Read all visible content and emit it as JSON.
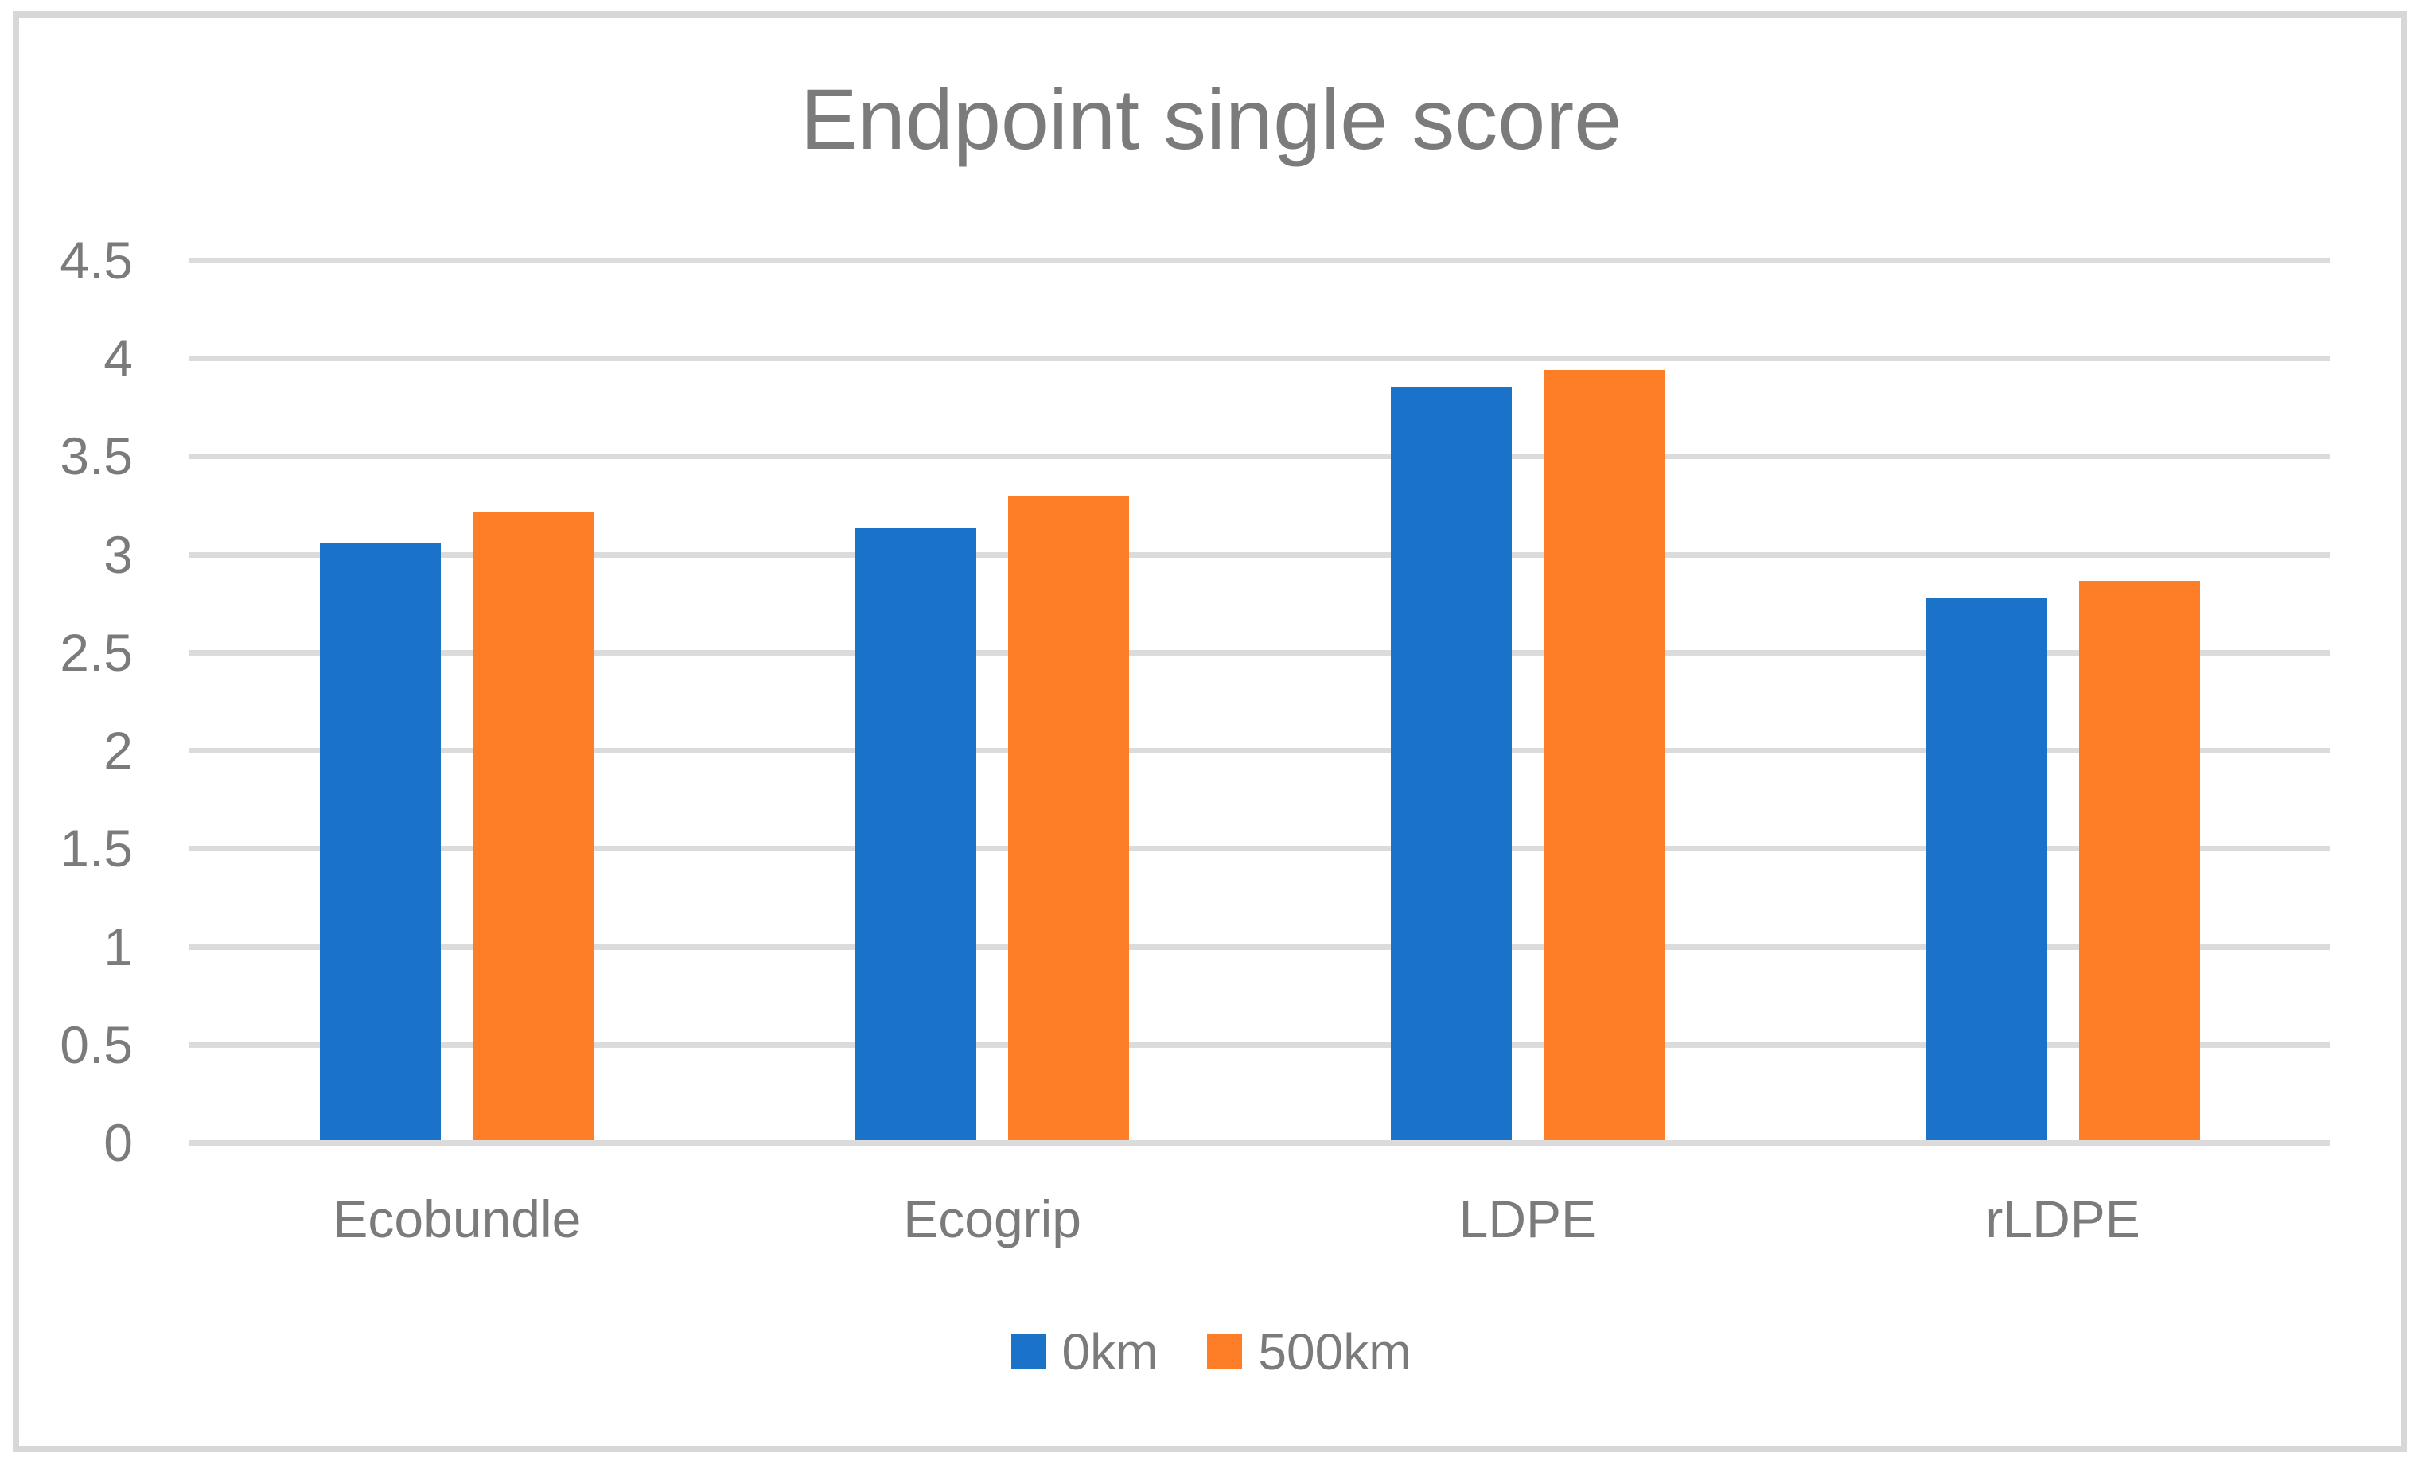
{
  "frame": {
    "background": "#FFFFFF",
    "border_color": "#D7D7D7"
  },
  "chart_data": {
    "type": "bar",
    "title": "Endpoint single score",
    "categories": [
      "Ecobundle",
      "Ecogrip",
      "LDPE",
      "rLDPE"
    ],
    "series": [
      {
        "name": "0km",
        "color": "#1A73C8",
        "values": [
          3.05,
          3.13,
          3.85,
          2.77
        ]
      },
      {
        "name": "500km",
        "color": "#FD7E27",
        "values": [
          3.21,
          3.29,
          3.94,
          2.86
        ]
      }
    ],
    "xlabel": "",
    "ylabel": "",
    "ylim": [
      0,
      4.5
    ],
    "ytick_step": 0.5,
    "ytick_labels": [
      "0",
      "0.5",
      "1",
      "1.5",
      "2",
      "2.5",
      "3",
      "3.5",
      "4",
      "4.5"
    ],
    "grid": true,
    "gridline_color": "#DBDBDB",
    "text_color": "#7B7B7B",
    "legend_position": "bottom"
  }
}
